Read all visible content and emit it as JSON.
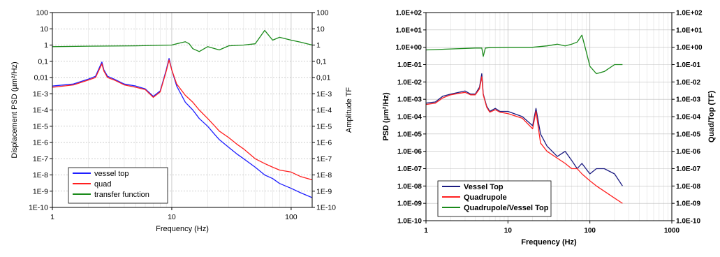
{
  "chart_data": [
    {
      "type": "line",
      "xscale": "log",
      "yscale": "log",
      "xlabel": "Frequency (Hz)",
      "ylabel_left": "Displacement PSD (µm²/Hz)",
      "ylabel_right": "Amplitude TF",
      "xlim": [
        1,
        150
      ],
      "ylim": [
        1e-10,
        100
      ],
      "x_tick_labels": [
        "1",
        "10",
        "100"
      ],
      "y_tick_labels": [
        "1E-10",
        "1E-9",
        "1E-8",
        "1E-7",
        "1E-6",
        "1E-5",
        "1E-4",
        "1E-3",
        "0,01",
        "0,1",
        "1",
        "10",
        "100"
      ],
      "grid": "major-and-minor",
      "legend_position": "bottom-left",
      "series": [
        {
          "name": "vessel top",
          "color": "#1f1fff",
          "x": [
            1,
            1.5,
            2,
            2.3,
            2.6,
            2.7,
            2.9,
            3.3,
            4,
            5,
            6,
            7,
            8,
            9,
            9.5,
            10,
            11,
            13,
            15,
            17,
            20,
            23,
            25,
            30,
            35,
            40,
            50,
            60,
            70,
            80,
            100,
            120,
            150
          ],
          "y": [
            0.003,
            0.004,
            0.008,
            0.012,
            0.09,
            0.03,
            0.012,
            0.008,
            0.004,
            0.003,
            0.002,
            0.0007,
            0.0015,
            0.03,
            0.15,
            0.03,
            0.003,
            0.0003,
            0.0001,
            3e-05,
            1e-05,
            3e-06,
            1.5e-06,
            5e-07,
            2e-07,
            1e-07,
            3e-08,
            1e-08,
            6e-09,
            3e-09,
            1.5e-09,
            8e-10,
            4e-10
          ]
        },
        {
          "name": "quad",
          "color": "#ff1f1f",
          "x": [
            1,
            1.5,
            2,
            2.3,
            2.6,
            2.7,
            2.9,
            3.3,
            4,
            5,
            6,
            7,
            8,
            9,
            9.5,
            10,
            11,
            13,
            15,
            17,
            20,
            23,
            25,
            30,
            35,
            40,
            50,
            60,
            70,
            80,
            100,
            120,
            150
          ],
          "y": [
            0.0025,
            0.0035,
            0.007,
            0.01,
            0.07,
            0.025,
            0.01,
            0.007,
            0.0035,
            0.0025,
            0.0018,
            0.0006,
            0.0013,
            0.025,
            0.12,
            0.03,
            0.004,
            0.0008,
            0.0003,
            0.0001,
            3e-05,
            1e-05,
            5e-06,
            2e-06,
            8e-07,
            4e-07,
            1e-07,
            5e-08,
            3e-08,
            2e-08,
            1.5e-08,
            8e-09,
            5e-09
          ]
        },
        {
          "name": "transfer function",
          "color": "#1a8a1a",
          "x": [
            1,
            2,
            5,
            10,
            12,
            13,
            14,
            15,
            17,
            20,
            25,
            30,
            40,
            50,
            60,
            70,
            80,
            100,
            120,
            150
          ],
          "y": [
            0.8,
            0.85,
            0.9,
            1,
            1.4,
            1.6,
            1.2,
            0.6,
            0.4,
            0.8,
            0.5,
            0.9,
            1,
            1.2,
            8,
            2,
            3,
            2,
            1.5,
            1
          ]
        }
      ]
    },
    {
      "type": "line",
      "xscale": "log",
      "yscale": "log",
      "xlabel": "Frequency (Hz)",
      "ylabel_left": "PSD (µm²/Hz)",
      "ylabel_right": "Quad/Top (TF)",
      "xlim": [
        1,
        1000
      ],
      "ylim": [
        1e-10,
        100
      ],
      "x_tick_labels": [
        "1",
        "10",
        "100",
        "1000"
      ],
      "y_tick_labels": [
        "1.0E-10",
        "1.0E-09",
        "1.0E-08",
        "1.0E-07",
        "1.0E-06",
        "1.0E-05",
        "1.0E-04",
        "1.0E-03",
        "1.0E-02",
        "1.0E-01",
        "1.0E+00",
        "1.0E+01",
        "1.0E+02"
      ],
      "grid": "major-and-minor-x",
      "legend_position": "bottom-left",
      "series": [
        {
          "name": "Vessel Top",
          "color": "#1a1a80",
          "x": [
            1,
            1.3,
            1.6,
            2,
            2.5,
            3,
            3.5,
            4,
            4.5,
            4.8,
            5,
            5.5,
            6,
            7,
            8,
            10,
            15,
            20,
            22,
            25,
            30,
            40,
            50,
            60,
            70,
            80,
            100,
            120,
            150,
            200,
            250
          ],
          "y": [
            0.0006,
            0.0007,
            0.0015,
            0.002,
            0.0025,
            0.003,
            0.002,
            0.002,
            0.005,
            0.03,
            0.002,
            0.0004,
            0.0002,
            0.0003,
            0.0002,
            0.0002,
            0.0001,
            3e-05,
            0.0003,
            1e-05,
            2e-06,
            5e-07,
            1e-06,
            3e-07,
            1e-07,
            2e-07,
            5e-08,
            1e-07,
            1e-07,
            5e-08,
            1e-08
          ]
        },
        {
          "name": "Quadrupole",
          "color": "#ff2020",
          "x": [
            1,
            1.3,
            1.6,
            2,
            2.5,
            3,
            3.5,
            4,
            4.5,
            4.8,
            5,
            5.5,
            6,
            7,
            8,
            10,
            15,
            20,
            22,
            25,
            30,
            40,
            50,
            60,
            70,
            80,
            100,
            120,
            150,
            200,
            250
          ],
          "y": [
            0.0005,
            0.0006,
            0.0012,
            0.0018,
            0.0022,
            0.0025,
            0.0018,
            0.0018,
            0.004,
            0.02,
            0.0018,
            0.00035,
            0.00018,
            0.00025,
            0.00018,
            0.00015,
            8e-05,
            2e-05,
            0.0002,
            3e-06,
            1e-06,
            4e-07,
            2e-07,
            1e-07,
            1e-07,
            5e-08,
            2e-08,
            1e-08,
            5e-09,
            2e-09,
            1e-09
          ]
        },
        {
          "name": "Quadrupole/Vessel Top",
          "color": "#1a8a1a",
          "x": [
            1,
            2,
            4,
            4.8,
            5,
            5.3,
            6,
            10,
            20,
            30,
            40,
            50,
            60,
            70,
            80,
            90,
            100,
            120,
            150,
            200,
            250
          ],
          "y": [
            0.7,
            0.8,
            0.9,
            0.9,
            0.3,
            0.9,
            0.95,
            1,
            1,
            1.2,
            1.5,
            1.2,
            1.5,
            2,
            5,
            0.6,
            0.08,
            0.03,
            0.04,
            0.1,
            0.1
          ]
        }
      ]
    }
  ]
}
